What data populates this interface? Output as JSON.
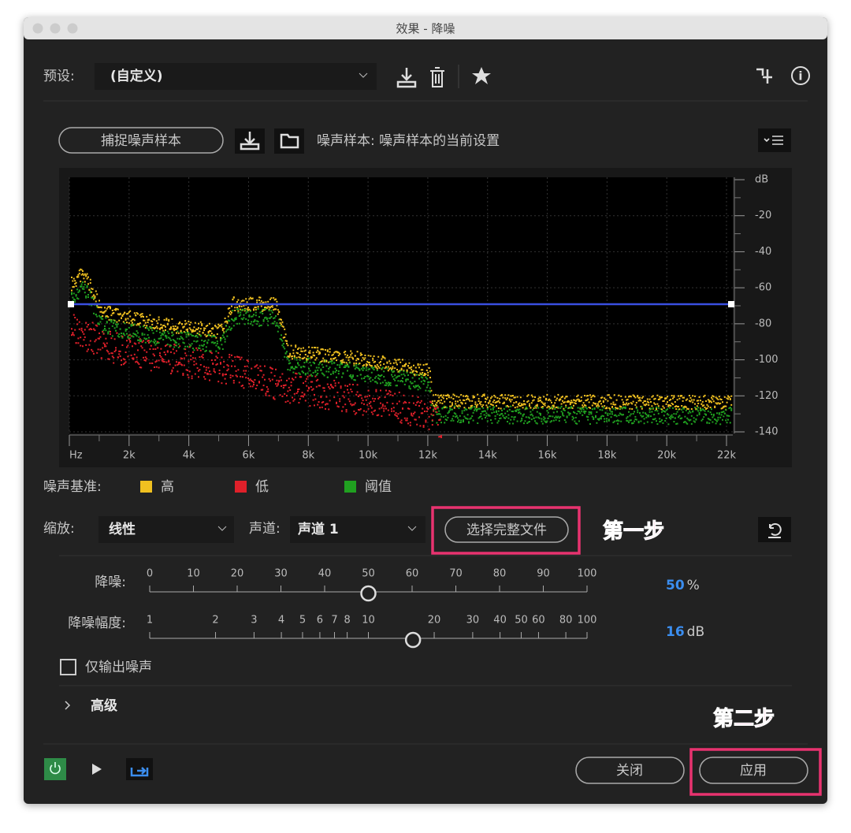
{
  "window": {
    "title": "效果 - 降噪"
  },
  "preset": {
    "label": "预设:",
    "value": "(自定义)"
  },
  "sample": {
    "capture_button": "捕捉噪声样本",
    "label": "噪声样本: 噪声样本的当前设置"
  },
  "graph": {
    "y_unit": "dB",
    "y_labels": [
      "-20",
      "-40",
      "-60",
      "-80",
      "-100",
      "-120",
      "-140"
    ],
    "x_labels": [
      "Hz",
      "2k",
      "4k",
      "6k",
      "8k",
      "10k",
      "12k",
      "14k",
      "16k",
      "18k",
      "20k",
      "22k"
    ]
  },
  "legend": {
    "label": "噪声基准:",
    "items": [
      {
        "name": "高",
        "color": "#f0c020"
      },
      {
        "name": "低",
        "color": "#e0202a"
      },
      {
        "name": "阈值",
        "color": "#20a020"
      }
    ]
  },
  "scale": {
    "label": "缩放:",
    "value": "线性"
  },
  "channel": {
    "label": "声道:",
    "value": "声道 1"
  },
  "select_button": "选择完整文件",
  "step1": "第一步",
  "noise_reduction": {
    "label": "降噪:",
    "ticks": [
      0,
      10,
      20,
      30,
      40,
      50,
      60,
      70,
      80,
      90,
      100
    ],
    "value": 50,
    "unit": "%"
  },
  "reduce_by": {
    "label": "降噪幅度:",
    "ticks": [
      1,
      2,
      3,
      4,
      5,
      6,
      7,
      8,
      10,
      20,
      30,
      40,
      50,
      60,
      80,
      100
    ],
    "value": 16,
    "unit": "dB"
  },
  "output_noise_only": "仅输出噪声",
  "advanced": "高级",
  "step2": "第二步",
  "buttons": {
    "close": "关闭",
    "apply": "应用"
  }
}
